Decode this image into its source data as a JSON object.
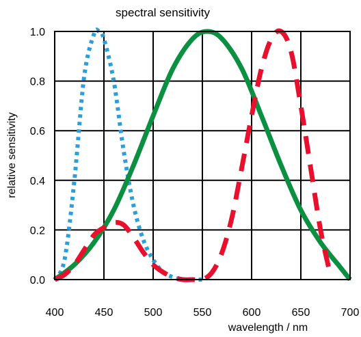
{
  "chart_data": {
    "type": "line",
    "title": "spectral sensitivity",
    "xlabel": "wavelength / nm",
    "ylabel": "relative sensitivity",
    "xlim": [
      400,
      700
    ],
    "ylim": [
      0,
      1.0
    ],
    "x_ticks": [
      400,
      450,
      500,
      550,
      600,
      650,
      700
    ],
    "y_ticks": [
      0.0,
      0.2,
      0.4,
      0.6,
      0.8,
      1.0
    ],
    "x_tick_labels": [
      "400",
      "450",
      "500",
      "550",
      "600",
      "650",
      "700"
    ],
    "y_tick_labels": [
      "0.0",
      "0.2",
      "0.4",
      "0.6",
      "0.8",
      "1.0"
    ],
    "grid": true,
    "legend": "none",
    "series": [
      {
        "style": "dotted",
        "color": "#2b9fdc",
        "x": [
          400,
          410,
          420,
          430,
          440,
          445,
          450,
          460,
          470,
          480,
          490,
          500,
          510,
          520,
          530,
          540,
          550
        ],
        "y": [
          0.0,
          0.08,
          0.4,
          0.82,
          0.99,
          1.0,
          0.97,
          0.8,
          0.52,
          0.3,
          0.16,
          0.08,
          0.03,
          0.01,
          0.0,
          0.0,
          0.0
        ]
      },
      {
        "style": "solid",
        "color": "#0a9040",
        "x": [
          400,
          420,
          440,
          460,
          480,
          500,
          520,
          540,
          555,
          570,
          590,
          610,
          630,
          650,
          670,
          690,
          700
        ],
        "y": [
          0.0,
          0.06,
          0.15,
          0.28,
          0.46,
          0.66,
          0.85,
          0.97,
          1.0,
          0.97,
          0.85,
          0.66,
          0.46,
          0.28,
          0.15,
          0.05,
          0.0
        ]
      },
      {
        "style": "dashed",
        "color": "#e8102c",
        "x": [
          400,
          410,
          420,
          430,
          440,
          450,
          460,
          470,
          480,
          490,
          500,
          510,
          520,
          530,
          540,
          550,
          560,
          570,
          580,
          590,
          600,
          610,
          620,
          630,
          640,
          650,
          660,
          670,
          680
        ],
        "y": [
          0.0,
          0.02,
          0.06,
          0.12,
          0.18,
          0.21,
          0.23,
          0.22,
          0.17,
          0.11,
          0.06,
          0.03,
          0.01,
          0.0,
          0.0,
          0.0,
          0.03,
          0.11,
          0.25,
          0.45,
          0.66,
          0.85,
          0.97,
          1.0,
          0.92,
          0.7,
          0.45,
          0.2,
          0.02
        ]
      }
    ]
  }
}
